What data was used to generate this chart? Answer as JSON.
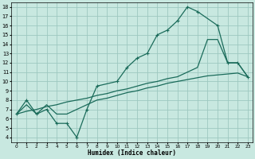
{
  "xlabel": "Humidex (Indice chaleur)",
  "bg_color": "#c8e8e0",
  "grid_color": "#9dc8c0",
  "line_color": "#1a6b5a",
  "xlim": [
    -0.5,
    23.5
  ],
  "ylim": [
    3.5,
    18.5
  ],
  "xticks": [
    0,
    1,
    2,
    3,
    4,
    5,
    6,
    7,
    8,
    9,
    10,
    11,
    12,
    13,
    14,
    15,
    16,
    17,
    18,
    19,
    20,
    21,
    22,
    23
  ],
  "yticks": [
    4,
    5,
    6,
    7,
    8,
    9,
    10,
    11,
    12,
    13,
    14,
    15,
    16,
    17,
    18
  ],
  "line1_x": [
    0,
    1,
    2,
    3,
    4,
    5,
    6,
    7,
    8,
    10,
    11,
    12,
    13,
    14,
    15,
    16,
    17,
    18,
    20,
    21,
    22,
    23
  ],
  "line1_y": [
    6.5,
    8.0,
    6.5,
    7.0,
    5.5,
    5.5,
    4.0,
    7.0,
    9.5,
    10.0,
    11.5,
    12.5,
    13.0,
    15.0,
    15.5,
    16.5,
    18.0,
    17.5,
    16.0,
    12.0,
    12.0,
    10.5
  ],
  "line2_x": [
    0,
    1,
    2,
    3,
    4,
    5,
    6,
    7,
    8,
    9,
    10,
    11,
    12,
    13,
    14,
    15,
    16,
    17,
    18,
    19,
    20,
    21,
    22,
    23
  ],
  "line2_y": [
    6.5,
    7.5,
    6.5,
    7.5,
    6.5,
    6.5,
    7.0,
    7.5,
    8.0,
    8.2,
    8.5,
    8.8,
    9.0,
    9.3,
    9.5,
    9.8,
    10.0,
    10.2,
    10.4,
    10.6,
    10.7,
    10.8,
    10.9,
    10.5
  ],
  "line3_x": [
    0,
    1,
    2,
    3,
    4,
    5,
    6,
    7,
    8,
    9,
    10,
    11,
    12,
    13,
    14,
    15,
    16,
    17,
    18,
    19,
    20,
    21,
    22,
    23
  ],
  "line3_y": [
    6.5,
    6.8,
    7.0,
    7.3,
    7.5,
    7.8,
    8.0,
    8.2,
    8.5,
    8.7,
    9.0,
    9.2,
    9.5,
    9.8,
    10.0,
    10.3,
    10.5,
    11.0,
    11.5,
    14.5,
    14.5,
    12.0,
    12.0,
    10.5
  ]
}
